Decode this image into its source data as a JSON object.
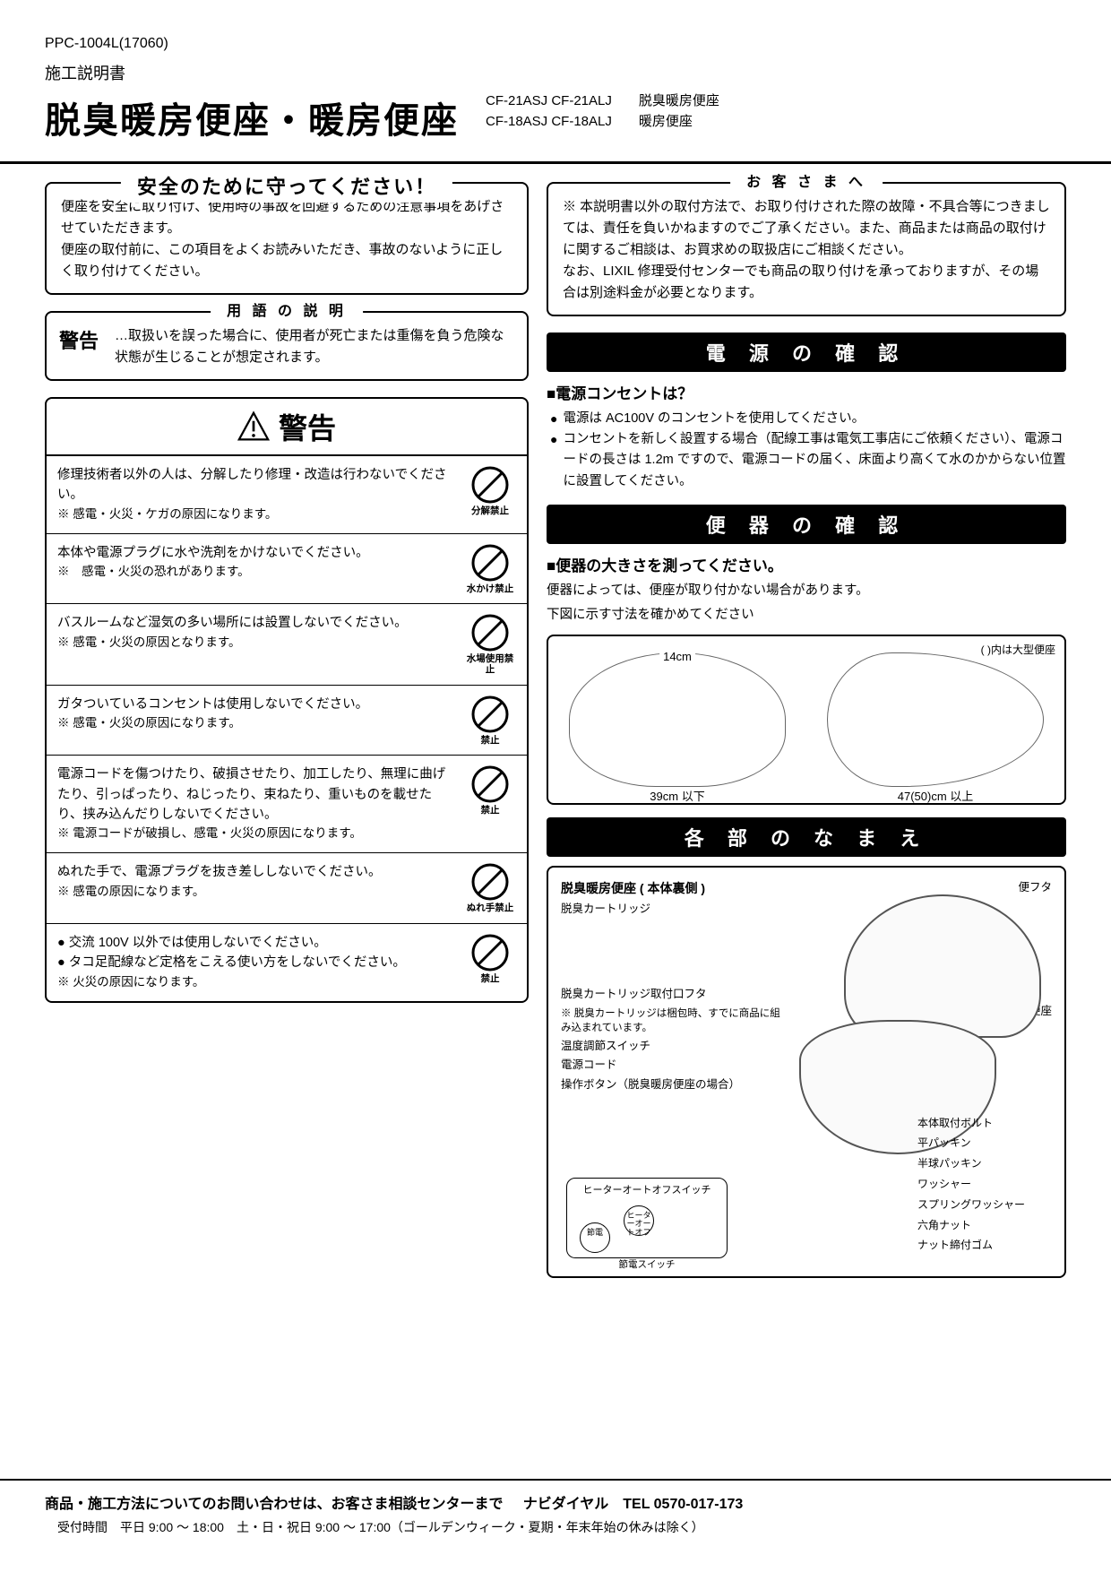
{
  "doc_code": "PPC-1004L(17060)",
  "doc_type": "施工説明書",
  "main_title": "脱臭暖房便座・暖房便座",
  "models": {
    "line1": "CF-21ASJ CF-21ALJ",
    "line2": "CF-18ASJ CF-18ALJ"
  },
  "model_desc": {
    "line1": "脱臭暖房便座",
    "line2": "暖房便座"
  },
  "safety": {
    "title": "安全のために守ってください！",
    "body": "便座を安全に取り付け、使用時の事故を回避するための注意事項をあげさせていただきます。\n便座の取付前に、この項目をよくお読みいただき、事故のないように正しく取り付けてください。"
  },
  "customer": {
    "title": "お 客 さ ま へ",
    "body": "※ 本説明書以外の取付方法で、お取り付けされた際の故障・不具合等につきましては、責任を負いかねますのでご了承ください。また、商品または商品の取付けに関するご相談は、お買求めの取扱店にご相談ください。\nなお、LIXIL 修理受付センターでも商品の取り付けを承っておりますが、その場合は別途料金が必要となります。"
  },
  "terms": {
    "title": "用 語 の 説 明",
    "label": "警告",
    "text": "…取扱いを誤った場合に、使用者が死亡または重傷を負う危険な状態が生じることが想定されます。"
  },
  "warning_header": "警告",
  "warnings": [
    {
      "text": "修理技術者以外の人は、分解したり修理・改造は行わないでください。",
      "note": "※ 感電・火災・ケガの原因になります。",
      "icon_label": "分解禁止"
    },
    {
      "text": "本体や電源プラグに水や洗剤をかけないでください。",
      "note": "※　感電・火災の恐れがあります。",
      "icon_label": "水かけ禁止"
    },
    {
      "text": "バスルームなど湿気の多い場所には設置しないでください。",
      "note": "※ 感電・火災の原因となります。",
      "icon_label": "水場使用禁止"
    },
    {
      "text": "ガタついているコンセントは使用しないでください。",
      "note": "※ 感電・火災の原因になります。",
      "icon_label": "禁止"
    },
    {
      "text": "電源コードを傷つけたり、破損させたり、加工したり、無理に曲げたり、引っぱったり、ねじったり、束ねたり、重いものを載せたり、挟み込んだりしないでください。",
      "note": "※ 電源コードが破損し、感電・火災の原因になります。",
      "icon_label": "禁止"
    },
    {
      "text": "ぬれた手で、電源プラグを抜き差ししないでください。",
      "note": "※ 感電の原因になります。",
      "icon_label": "ぬれ手禁止"
    },
    {
      "text": "● 交流 100V 以外では使用しないでください。\n● タコ足配線など定格をこえる使い方をしないでください。",
      "note": "※ 火災の原因になります。",
      "icon_label": "禁止"
    }
  ],
  "power": {
    "bar": "電 源 の 確 認",
    "sub": "■電源コンセントは？",
    "b1": "電源は AC100V のコンセントを使用してください。",
    "b2": "コンセントを新しく設置する場合（配線工事は電気工事店にご依頼ください）、電源コードの長さは 1.2m ですので、電源コードの届く、床面より高くて水のかからない位置に設置してください。"
  },
  "toilet_check": {
    "bar": "便 器 の 確 認",
    "sub": "■便器の大きさを測ってください。",
    "p1": "便器によっては、便座が取り付かない場合があります。",
    "p2": "下図に示す寸法を確かめてください",
    "dim1": "14cm",
    "dim2": "39cm 以下",
    "dim3": "47(50)cm 以上",
    "note": "( )内は大型便座"
  },
  "parts": {
    "bar": "各 部 の な ま え",
    "subtitle": "脱臭暖房便座 ( 本体裏側 )",
    "left_labels": {
      "cartridge": "脱臭カートリッジ",
      "cartridge_cover": "脱臭カートリッジ取付口フタ",
      "note": "※ 脱臭カートリッジは梱包時、すでに商品に組み込まれています。",
      "temp_switch": "温度調節スイッチ",
      "power_cord": "電源コード",
      "op_buttons": "操作ボタン（脱臭暖房便座の場合）"
    },
    "right_labels": {
      "lid": "便フタ",
      "seat": "便座"
    },
    "panel": {
      "title": "ヒーターオートオフスイッチ",
      "btn1": "節電",
      "btn2": "ヒーターオートオフ",
      "bottom": "節電スイッチ"
    },
    "hardware": [
      "本体取付ボルト",
      "平パッキン",
      "半球パッキン",
      "ワッシャー",
      "スプリングワッシャー",
      "六角ナット",
      "ナット締付ゴム"
    ]
  },
  "footer": {
    "line1a": "商品・施工方法についてのお問い合わせは、お客さま相談センターまで",
    "line1b": "ナビダイヤル　TEL 0570-017-173",
    "line2": "受付時間　平日 9:00 ～ 18:00　土・日・祝日 9:00 ～ 17:00（ゴールデンウィーク・夏期・年末年始の休みは除く）"
  },
  "colors": {
    "text": "#000000",
    "bg": "#ffffff"
  }
}
